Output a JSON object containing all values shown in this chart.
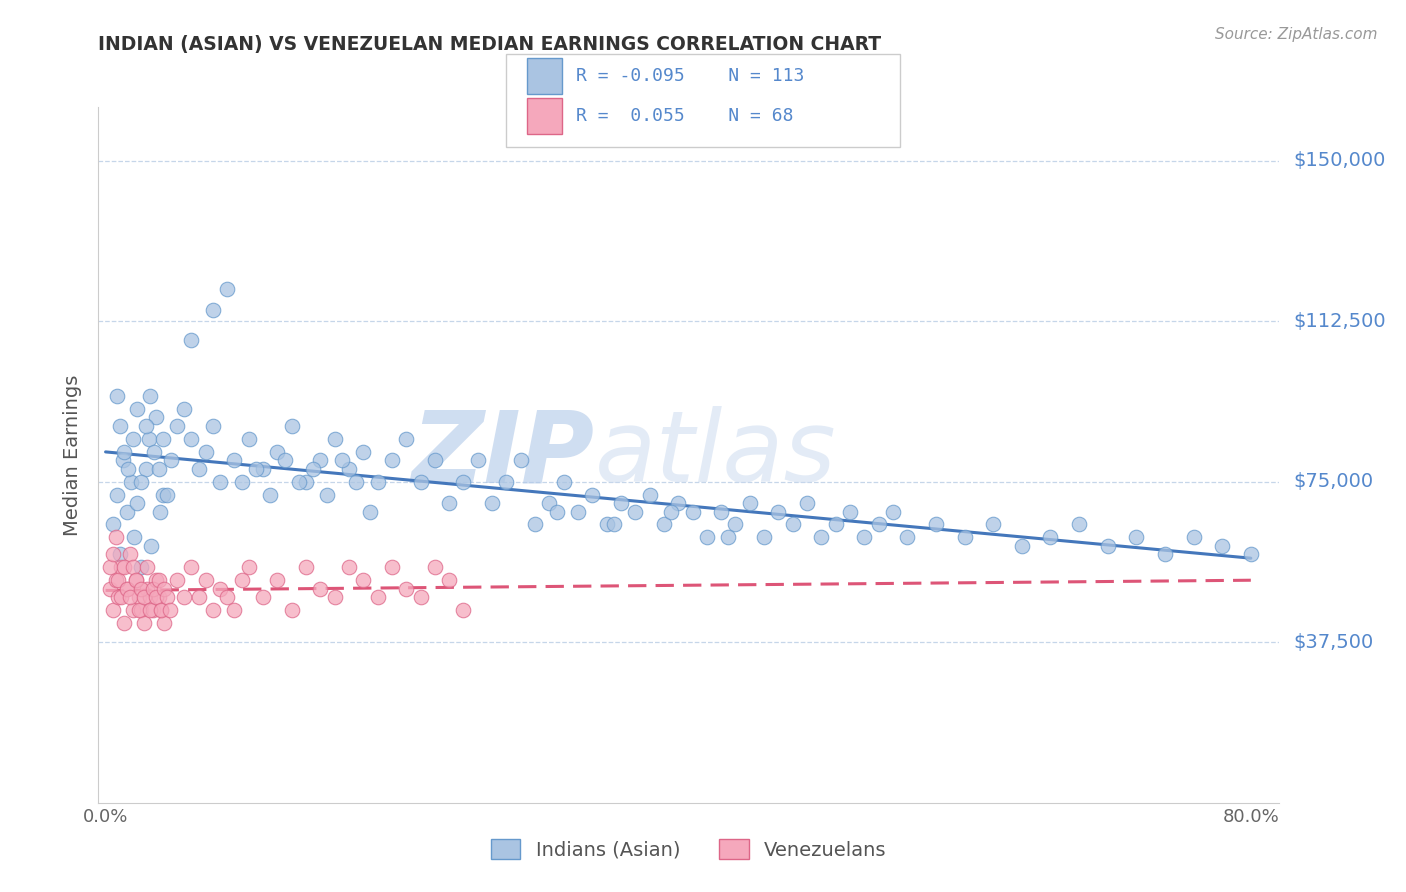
{
  "title": "INDIAN (ASIAN) VS VENEZUELAN MEDIAN EARNINGS CORRELATION CHART",
  "source": "Source: ZipAtlas.com",
  "ylabel": "Median Earnings",
  "xlim": [
    -0.005,
    0.82
  ],
  "ylim": [
    0,
    162500
  ],
  "yticks": [
    37500,
    75000,
    112500,
    150000
  ],
  "ytick_labels": [
    "$37,500",
    "$75,000",
    "$112,500",
    "$150,000"
  ],
  "blue_color": "#aac4e2",
  "blue_edge_color": "#6699cc",
  "pink_color": "#f5a8bc",
  "pink_edge_color": "#dd6688",
  "blue_line_color": "#4477bb",
  "pink_line_color": "#dd5577",
  "label_color": "#5588cc",
  "watermark_zip": "ZIP",
  "watermark_atlas": "atlas",
  "watermark_color": "#c8d8ee",
  "indian_x": [
    0.005,
    0.008,
    0.01,
    0.012,
    0.015,
    0.018,
    0.02,
    0.022,
    0.025,
    0.028,
    0.03,
    0.032,
    0.035,
    0.038,
    0.04,
    0.008,
    0.01,
    0.013,
    0.016,
    0.019,
    0.022,
    0.025,
    0.028,
    0.031,
    0.034,
    0.037,
    0.04,
    0.043,
    0.046,
    0.05,
    0.055,
    0.06,
    0.065,
    0.07,
    0.075,
    0.08,
    0.09,
    0.1,
    0.11,
    0.12,
    0.13,
    0.14,
    0.15,
    0.16,
    0.17,
    0.18,
    0.19,
    0.2,
    0.21,
    0.22,
    0.23,
    0.24,
    0.25,
    0.26,
    0.27,
    0.28,
    0.29,
    0.3,
    0.31,
    0.32,
    0.33,
    0.34,
    0.35,
    0.36,
    0.37,
    0.38,
    0.39,
    0.4,
    0.41,
    0.42,
    0.43,
    0.44,
    0.45,
    0.46,
    0.47,
    0.48,
    0.49,
    0.5,
    0.51,
    0.52,
    0.53,
    0.54,
    0.55,
    0.56,
    0.58,
    0.6,
    0.62,
    0.64,
    0.66,
    0.68,
    0.7,
    0.72,
    0.74,
    0.76,
    0.78,
    0.8,
    0.06,
    0.075,
    0.085,
    0.095,
    0.105,
    0.115,
    0.125,
    0.135,
    0.145,
    0.155,
    0.165,
    0.175,
    0.185,
    0.315,
    0.355,
    0.395,
    0.435
  ],
  "indian_y": [
    65000,
    72000,
    58000,
    80000,
    68000,
    75000,
    62000,
    70000,
    55000,
    78000,
    85000,
    60000,
    90000,
    68000,
    72000,
    95000,
    88000,
    82000,
    78000,
    85000,
    92000,
    75000,
    88000,
    95000,
    82000,
    78000,
    85000,
    72000,
    80000,
    88000,
    92000,
    85000,
    78000,
    82000,
    88000,
    75000,
    80000,
    85000,
    78000,
    82000,
    88000,
    75000,
    80000,
    85000,
    78000,
    82000,
    75000,
    80000,
    85000,
    75000,
    80000,
    70000,
    75000,
    80000,
    70000,
    75000,
    80000,
    65000,
    70000,
    75000,
    68000,
    72000,
    65000,
    70000,
    68000,
    72000,
    65000,
    70000,
    68000,
    62000,
    68000,
    65000,
    70000,
    62000,
    68000,
    65000,
    70000,
    62000,
    65000,
    68000,
    62000,
    65000,
    68000,
    62000,
    65000,
    62000,
    65000,
    60000,
    62000,
    65000,
    60000,
    62000,
    58000,
    62000,
    60000,
    58000,
    108000,
    115000,
    120000,
    75000,
    78000,
    72000,
    80000,
    75000,
    78000,
    72000,
    80000,
    75000,
    68000,
    68000,
    65000,
    68000,
    62000
  ],
  "venezuelan_x": [
    0.003,
    0.005,
    0.007,
    0.009,
    0.011,
    0.013,
    0.015,
    0.017,
    0.019,
    0.021,
    0.023,
    0.025,
    0.027,
    0.029,
    0.031,
    0.033,
    0.035,
    0.037,
    0.039,
    0.041,
    0.003,
    0.005,
    0.007,
    0.009,
    0.011,
    0.013,
    0.015,
    0.017,
    0.019,
    0.021,
    0.023,
    0.025,
    0.027,
    0.029,
    0.031,
    0.033,
    0.035,
    0.037,
    0.039,
    0.041,
    0.043,
    0.045,
    0.05,
    0.055,
    0.06,
    0.065,
    0.07,
    0.075,
    0.08,
    0.085,
    0.09,
    0.095,
    0.1,
    0.11,
    0.12,
    0.13,
    0.14,
    0.15,
    0.16,
    0.17,
    0.18,
    0.19,
    0.2,
    0.21,
    0.22,
    0.23,
    0.24,
    0.25
  ],
  "venezuelan_y": [
    50000,
    45000,
    52000,
    48000,
    55000,
    42000,
    50000,
    58000,
    45000,
    52000,
    48000,
    45000,
    42000,
    50000,
    48000,
    45000,
    52000,
    48000,
    45000,
    42000,
    55000,
    58000,
    62000,
    52000,
    48000,
    55000,
    50000,
    48000,
    55000,
    52000,
    45000,
    50000,
    48000,
    55000,
    45000,
    50000,
    48000,
    52000,
    45000,
    50000,
    48000,
    45000,
    52000,
    48000,
    55000,
    48000,
    52000,
    45000,
    50000,
    48000,
    45000,
    52000,
    55000,
    48000,
    52000,
    45000,
    55000,
    50000,
    48000,
    55000,
    52000,
    48000,
    55000,
    50000,
    48000,
    55000,
    52000,
    45000
  ]
}
